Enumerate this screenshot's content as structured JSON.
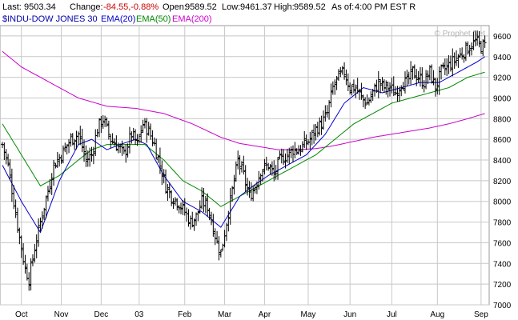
{
  "header": {
    "last_label": "Last:",
    "last_value": "9503.34",
    "change_label": "Change:",
    "change_value": "-84.55,-0.88%",
    "open_label": "Open:",
    "open_value": "9589.52",
    "low_label": "Low:",
    "low_value": "9461.37",
    "high_label": "High:",
    "high_value": "9589.52",
    "asof_label": "As of:",
    "asof_value": "4:00 PM EST R"
  },
  "legend": {
    "symbol": "$INDU-DOW JONES 30",
    "ema20": "EMA(20)",
    "ema50": "EMA(50)",
    "ema200": "EMA(200)"
  },
  "watermark": "© Prophet.Net",
  "colors": {
    "price": "#000000",
    "ema20": "#0000cc",
    "ema50": "#008800",
    "ema200": "#cc00cc",
    "change": "#cc0000",
    "grid": "#c8c8c8",
    "plot_border": "#999999"
  },
  "chart_data": {
    "type": "line",
    "grid": true,
    "ylim": [
      7000,
      9700
    ],
    "y_ticks": [
      7000,
      7200,
      7400,
      7600,
      7800,
      8000,
      8200,
      8400,
      8600,
      8800,
      9000,
      9200,
      9400,
      9600
    ],
    "x_ticks": [
      "Oct",
      "Nov",
      "Dec",
      "03",
      "Feb",
      "Mar",
      "Apr",
      "May",
      "Jun",
      "Jul",
      "Aug",
      "Sep"
    ],
    "x_tick_days": [
      10,
      31,
      52,
      72,
      96,
      117,
      138,
      161,
      183,
      205,
      229,
      252
    ],
    "x_range_days": [
      0,
      255
    ],
    "price_series": {
      "name": "$INDU-DOW JONES 30",
      "style": "daily high-low bars",
      "anchors_day": [
        0,
        3,
        6,
        9,
        12,
        14,
        17,
        20,
        24,
        27,
        31,
        36,
        40,
        44,
        47,
        50,
        53,
        57,
        60,
        64,
        68,
        71,
        74,
        77,
        80,
        83,
        86,
        89,
        92,
        96,
        99,
        102,
        105,
        108,
        111,
        113,
        115,
        118,
        121,
        124,
        127,
        130,
        133,
        136,
        140,
        143,
        146,
        150,
        153,
        156,
        159,
        162,
        165,
        168,
        171,
        174,
        177,
        180,
        183,
        186,
        189,
        192,
        195,
        198,
        201,
        204,
        207,
        210,
        213,
        216,
        219,
        222,
        225,
        228,
        231,
        234,
        237,
        240,
        243,
        246,
        249,
        252,
        254
      ],
      "anchors_close": [
        8550,
        8350,
        8000,
        7650,
        7350,
        7250,
        7550,
        7800,
        8100,
        8350,
        8450,
        8600,
        8650,
        8400,
        8450,
        8700,
        8800,
        8600,
        8550,
        8450,
        8650,
        8550,
        8750,
        8680,
        8550,
        8350,
        8150,
        8050,
        8000,
        7900,
        7800,
        7850,
        8000,
        7950,
        7750,
        7600,
        7500,
        7800,
        8100,
        8400,
        8250,
        8050,
        8150,
        8300,
        8350,
        8250,
        8400,
        8450,
        8500,
        8500,
        8550,
        8600,
        8700,
        8750,
        8850,
        9100,
        9200,
        9250,
        9100,
        9100,
        9000,
        8950,
        9050,
        9150,
        9100,
        9100,
        9050,
        9150,
        9150,
        9250,
        9200,
        9150,
        9250,
        9100,
        9250,
        9300,
        9350,
        9400,
        9450,
        9500,
        9550,
        9500,
        9503
      ]
    },
    "series": [
      {
        "name": "EMA(20)",
        "x_day": [
          0,
          10,
          20,
          30,
          40,
          47,
          55,
          62,
          70,
          76,
          85,
          95,
          105,
          115,
          120,
          125,
          132,
          140,
          150,
          160,
          170,
          180,
          190,
          200,
          210,
          220,
          230,
          240,
          250,
          254
        ],
        "y": [
          8350,
          8000,
          7700,
          8200,
          8550,
          8600,
          8500,
          8550,
          8600,
          8550,
          8250,
          8000,
          7900,
          7750,
          7900,
          8050,
          8150,
          8250,
          8350,
          8450,
          8650,
          8950,
          9100,
          9050,
          9100,
          9150,
          9150,
          9250,
          9350,
          9400
        ]
      },
      {
        "name": "EMA(50)",
        "x_day": [
          0,
          10,
          20,
          30,
          40,
          47,
          55,
          65,
          75,
          85,
          95,
          105,
          115,
          125,
          135,
          145,
          155,
          165,
          175,
          185,
          195,
          205,
          215,
          225,
          235,
          245,
          254
        ],
        "y": [
          8750,
          8450,
          8150,
          8250,
          8400,
          8500,
          8550,
          8550,
          8550,
          8400,
          8200,
          8100,
          7950,
          8050,
          8150,
          8250,
          8350,
          8450,
          8600,
          8750,
          8850,
          8950,
          9000,
          9050,
          9100,
          9200,
          9250
        ]
      },
      {
        "name": "EMA(200)",
        "x_day": [
          0,
          10,
          25,
          40,
          55,
          70,
          85,
          100,
          115,
          125,
          135,
          145,
          155,
          165,
          175,
          185,
          195,
          205,
          215,
          225,
          235,
          245,
          254
        ],
        "y": [
          9450,
          9300,
          9150,
          9000,
          8920,
          8900,
          8850,
          8750,
          8620,
          8560,
          8530,
          8500,
          8500,
          8510,
          8540,
          8580,
          8620,
          8650,
          8680,
          8710,
          8750,
          8800,
          8850
        ]
      }
    ]
  }
}
